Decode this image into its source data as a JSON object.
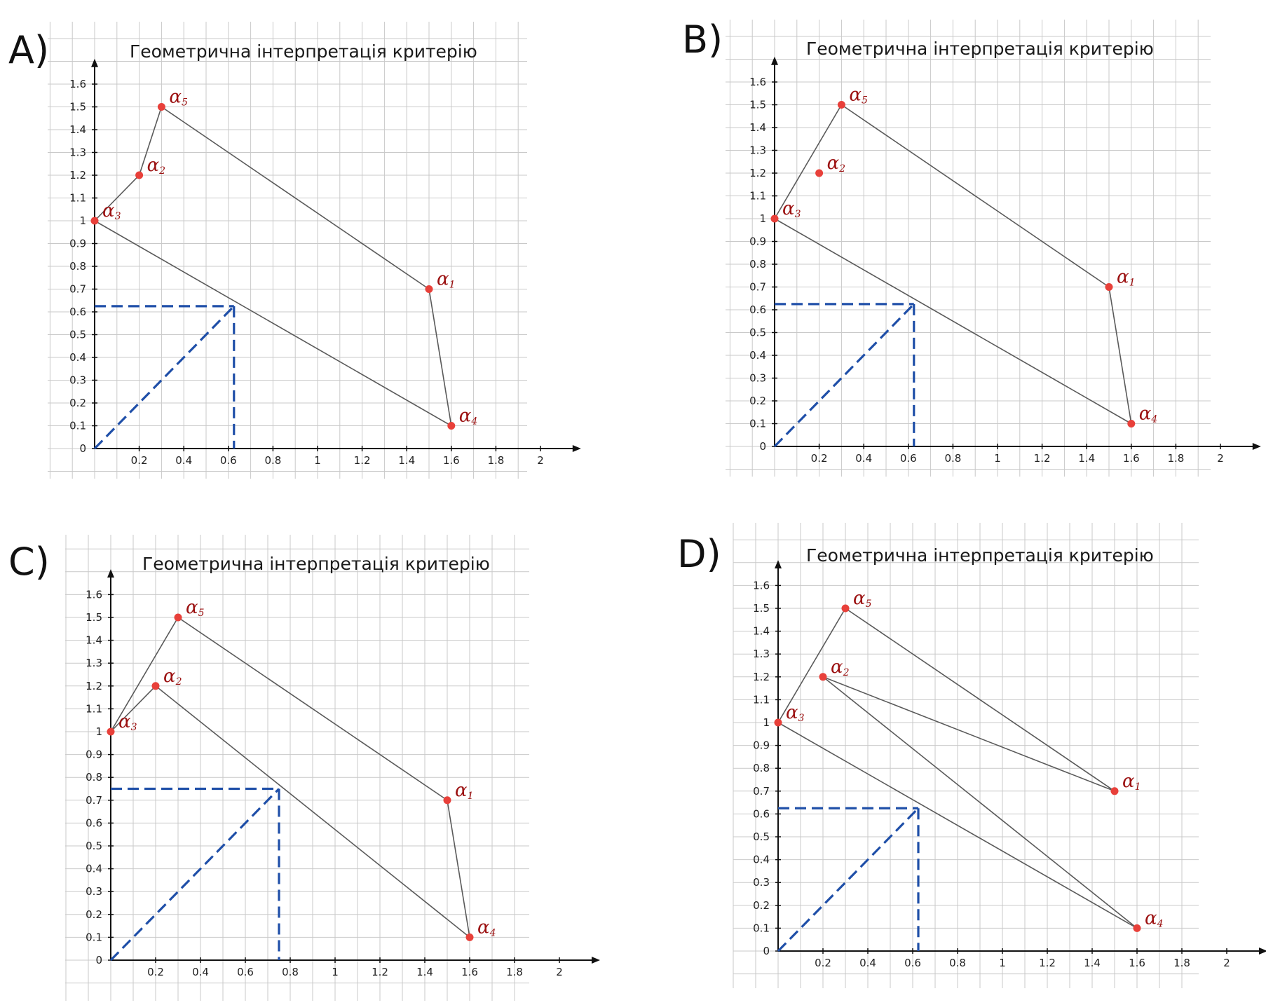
{
  "colors": {
    "grid": "#c9c9c9",
    "axis": "#111111",
    "edge": "#5a5a5a",
    "point": "#e8403a",
    "label": "#9b1010",
    "dash": "#1f4fa8"
  },
  "chart_data": [
    {
      "type": "line",
      "panel": "A)",
      "title": "Геометрична   інтерпретація   критерію",
      "xlim": [
        0,
        2.1
      ],
      "ylim": [
        0,
        1.65
      ],
      "x_ticks": [
        "0.2",
        "0.4",
        "0.6",
        "0.8",
        "1",
        "1.2",
        "1.4",
        "1.6",
        "1.8",
        "2"
      ],
      "y_ticks": [
        "0",
        "0.1",
        "0.2",
        "0.3",
        "0.4",
        "0.5",
        "0.6",
        "0.7",
        "0.8",
        "0.9",
        "1",
        "1.1",
        "1.2",
        "1.3",
        "1.4",
        "1.5",
        "1.6"
      ],
      "grid": true,
      "points": [
        {
          "label": "α",
          "sub": "1",
          "x": 1.5,
          "y": 0.7
        },
        {
          "label": "α",
          "sub": "2",
          "x": 0.2,
          "y": 1.2
        },
        {
          "label": "α",
          "sub": "3",
          "x": 0,
          "y": 1
        },
        {
          "label": "α",
          "sub": "4",
          "x": 1.6,
          "y": 0.1
        },
        {
          "label": "α",
          "sub": "5",
          "x": 0.3,
          "y": 1.5
        }
      ],
      "edges": [
        [
          "3",
          "2"
        ],
        [
          "2",
          "5"
        ],
        [
          "5",
          "1"
        ],
        [
          "1",
          "4"
        ],
        [
          "4",
          "3"
        ]
      ],
      "dashed_point": {
        "x": 0.625,
        "y": 0.625
      }
    },
    {
      "type": "line",
      "panel": "B)",
      "title": "Геометрична   інтерпретація   критерію",
      "xlim": [
        0,
        2.1
      ],
      "ylim": [
        0,
        1.65
      ],
      "x_ticks": [
        "0.2",
        "0.4",
        "0.6",
        "0.8",
        "1",
        "1.2",
        "1.4",
        "1.6",
        "1.8",
        "2"
      ],
      "y_ticks": [
        "0",
        "0.1",
        "0.2",
        "0.3",
        "0.4",
        "0.5",
        "0.6",
        "0.7",
        "0.8",
        "0.9",
        "1",
        "1.1",
        "1.2",
        "1.3",
        "1.4",
        "1.5",
        "1.6"
      ],
      "grid": true,
      "points": [
        {
          "label": "α",
          "sub": "1",
          "x": 1.5,
          "y": 0.7
        },
        {
          "label": "α",
          "sub": "2",
          "x": 0.2,
          "y": 1.2
        },
        {
          "label": "α",
          "sub": "3",
          "x": 0,
          "y": 1
        },
        {
          "label": "α",
          "sub": "4",
          "x": 1.6,
          "y": 0.1
        },
        {
          "label": "α",
          "sub": "5",
          "x": 0.3,
          "y": 1.5
        }
      ],
      "edges": [
        [
          "3",
          "5"
        ],
        [
          "5",
          "1"
        ],
        [
          "1",
          "4"
        ],
        [
          "4",
          "3"
        ]
      ],
      "dashed_point": {
        "x": 0.625,
        "y": 0.625
      }
    },
    {
      "type": "line",
      "panel": "C)",
      "title": "Геометрична   інтерпретація   критерію",
      "xlim": [
        0,
        2.1
      ],
      "ylim": [
        0,
        1.65
      ],
      "x_ticks": [
        "0.2",
        "0.4",
        "0.6",
        "0.8",
        "1",
        "1.2",
        "1.4",
        "1.6",
        "1.8",
        "2"
      ],
      "y_ticks": [
        "0",
        "0.1",
        "0.2",
        "0.3",
        "0.4",
        "0.5",
        "0.6",
        "0.7",
        "0.8",
        "0.9",
        "1",
        "1.1",
        "1.2",
        "1.3",
        "1.4",
        "1.5",
        "1.6"
      ],
      "grid": true,
      "points": [
        {
          "label": "α",
          "sub": "1",
          "x": 1.5,
          "y": 0.7
        },
        {
          "label": "α",
          "sub": "2",
          "x": 0.2,
          "y": 1.2
        },
        {
          "label": "α",
          "sub": "3",
          "x": 0,
          "y": 1
        },
        {
          "label": "α",
          "sub": "4",
          "x": 1.6,
          "y": 0.1
        },
        {
          "label": "α",
          "sub": "5",
          "x": 0.3,
          "y": 1.5
        }
      ],
      "edges": [
        [
          "3",
          "5"
        ],
        [
          "5",
          "1"
        ],
        [
          "1",
          "4"
        ],
        [
          "4",
          "2"
        ],
        [
          "2",
          "3"
        ]
      ],
      "dashed_point": {
        "x": 0.75,
        "y": 0.75
      }
    },
    {
      "type": "line",
      "panel": "D)",
      "title": "Геометрична   інтерпретація   критерію",
      "xlim": [
        0,
        2.1
      ],
      "ylim": [
        0,
        1.65
      ],
      "x_ticks": [
        "0.2",
        "0.4",
        "0.6",
        "0.8",
        "1",
        "1.2",
        "1.4",
        "1.6",
        "1.8",
        "2"
      ],
      "y_ticks": [
        "0",
        "0.1",
        "0.2",
        "0.3",
        "0.4",
        "0.5",
        "0.6",
        "0.7",
        "0.8",
        "0.9",
        "1",
        "1.1",
        "1.2",
        "1.3",
        "1.4",
        "1.5",
        "1.6"
      ],
      "grid": true,
      "points": [
        {
          "label": "α",
          "sub": "1",
          "x": 1.5,
          "y": 0.7
        },
        {
          "label": "α",
          "sub": "2",
          "x": 0.2,
          "y": 1.2
        },
        {
          "label": "α",
          "sub": "3",
          "x": 0,
          "y": 1
        },
        {
          "label": "α",
          "sub": "4",
          "x": 1.6,
          "y": 0.1
        },
        {
          "label": "α",
          "sub": "5",
          "x": 0.3,
          "y": 1.5
        }
      ],
      "edges": [
        [
          "3",
          "5"
        ],
        [
          "5",
          "1"
        ],
        [
          "1",
          "2"
        ],
        [
          "2",
          "4"
        ],
        [
          "4",
          "3"
        ]
      ],
      "dashed_point": {
        "x": 0.625,
        "y": 0.625
      }
    }
  ]
}
